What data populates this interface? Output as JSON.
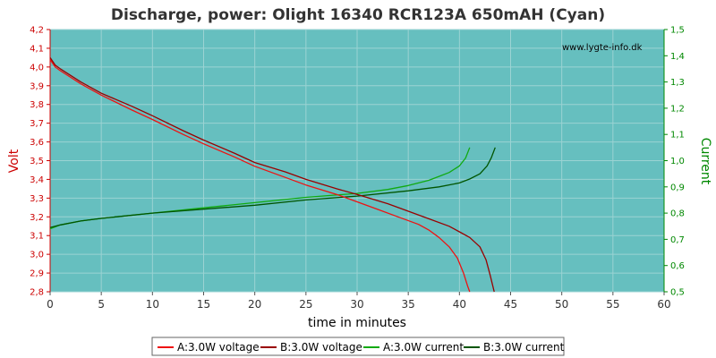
{
  "chart_data": {
    "type": "line",
    "title": "Discharge, power: Olight 16340 RCR123A 650mAH (Cyan)",
    "watermark": "www.lygte-info.dk",
    "xlabel": "time in minutes",
    "ylabel_left": "Volt",
    "ylabel_right": "Current",
    "xlim": [
      0,
      60
    ],
    "ylim_left": [
      2.8,
      4.2
    ],
    "ylim_right": [
      0.5,
      1.5
    ],
    "x_ticks": [
      "0",
      "5",
      "10",
      "15",
      "20",
      "25",
      "30",
      "35",
      "40",
      "45",
      "50",
      "55",
      "60"
    ],
    "y_left_ticks": [
      "2,8",
      "2,9",
      "3,0",
      "3,1",
      "3,2",
      "3,3",
      "3,4",
      "3,5",
      "3,6",
      "3,7",
      "3,8",
      "3,9",
      "4,0",
      "4,1",
      "4,2"
    ],
    "y_right_ticks": [
      "0,5",
      "0,6",
      "0,7",
      "0,8",
      "0,9",
      "1,0",
      "1,1",
      "1,2",
      "1,3",
      "1,4",
      "1,5"
    ],
    "grid": true,
    "legend_position": "bottom",
    "colors": {
      "plot_bg": "#66bfbf",
      "grid": "#9bd3d3",
      "voltage_a": "#ee1111",
      "voltage_b": "#990000",
      "current_a": "#11aa11",
      "current_b": "#005500",
      "left_axis": "#cc0000",
      "right_axis": "#008800"
    },
    "series": [
      {
        "name": "A:3.0W voltage",
        "axis": "left",
        "color": "#ee1111",
        "points": [
          [
            0,
            4.04
          ],
          [
            0.5,
            4.0
          ],
          [
            1,
            3.98
          ],
          [
            3,
            3.91
          ],
          [
            5,
            3.85
          ],
          [
            8,
            3.77
          ],
          [
            10,
            3.72
          ],
          [
            13,
            3.64
          ],
          [
            15,
            3.59
          ],
          [
            18,
            3.52
          ],
          [
            20,
            3.47
          ],
          [
            23,
            3.41
          ],
          [
            25,
            3.37
          ],
          [
            28,
            3.32
          ],
          [
            30,
            3.28
          ],
          [
            32,
            3.24
          ],
          [
            34,
            3.2
          ],
          [
            36,
            3.16
          ],
          [
            37,
            3.13
          ],
          [
            38,
            3.09
          ],
          [
            39,
            3.04
          ],
          [
            39.8,
            2.98
          ],
          [
            40.4,
            2.9
          ],
          [
            40.8,
            2.83
          ],
          [
            41.0,
            2.8
          ]
        ]
      },
      {
        "name": "B:3.0W voltage",
        "axis": "left",
        "color": "#990000",
        "points": [
          [
            0,
            4.05
          ],
          [
            0.5,
            4.01
          ],
          [
            1,
            3.99
          ],
          [
            3,
            3.92
          ],
          [
            5,
            3.86
          ],
          [
            8,
            3.79
          ],
          [
            10,
            3.74
          ],
          [
            13,
            3.66
          ],
          [
            15,
            3.61
          ],
          [
            18,
            3.54
          ],
          [
            20,
            3.49
          ],
          [
            23,
            3.44
          ],
          [
            25,
            3.4
          ],
          [
            28,
            3.35
          ],
          [
            30,
            3.32
          ],
          [
            33,
            3.27
          ],
          [
            35,
            3.23
          ],
          [
            37,
            3.19
          ],
          [
            39,
            3.15
          ],
          [
            40,
            3.12
          ],
          [
            41,
            3.09
          ],
          [
            42,
            3.04
          ],
          [
            42.6,
            2.97
          ],
          [
            43.0,
            2.89
          ],
          [
            43.4,
            2.8
          ]
        ]
      },
      {
        "name": "A:3.0W current",
        "axis": "right",
        "color": "#11aa11",
        "points": [
          [
            0,
            0.74
          ],
          [
            1,
            0.755
          ],
          [
            3,
            0.77
          ],
          [
            5,
            0.78
          ],
          [
            10,
            0.8
          ],
          [
            15,
            0.82
          ],
          [
            20,
            0.84
          ],
          [
            25,
            0.86
          ],
          [
            30,
            0.875
          ],
          [
            33,
            0.89
          ],
          [
            35,
            0.905
          ],
          [
            37,
            0.925
          ],
          [
            38,
            0.94
          ],
          [
            39,
            0.955
          ],
          [
            40,
            0.98
          ],
          [
            40.6,
            1.01
          ],
          [
            41.0,
            1.05
          ]
        ]
      },
      {
        "name": "B:3.0W current",
        "axis": "right",
        "color": "#005500",
        "points": [
          [
            0,
            0.745
          ],
          [
            1,
            0.755
          ],
          [
            3,
            0.77
          ],
          [
            5,
            0.78
          ],
          [
            10,
            0.8
          ],
          [
            15,
            0.815
          ],
          [
            20,
            0.83
          ],
          [
            25,
            0.85
          ],
          [
            30,
            0.865
          ],
          [
            35,
            0.885
          ],
          [
            38,
            0.9
          ],
          [
            40,
            0.915
          ],
          [
            41,
            0.93
          ],
          [
            42,
            0.95
          ],
          [
            42.7,
            0.98
          ],
          [
            43.1,
            1.01
          ],
          [
            43.5,
            1.05
          ]
        ]
      }
    ]
  }
}
